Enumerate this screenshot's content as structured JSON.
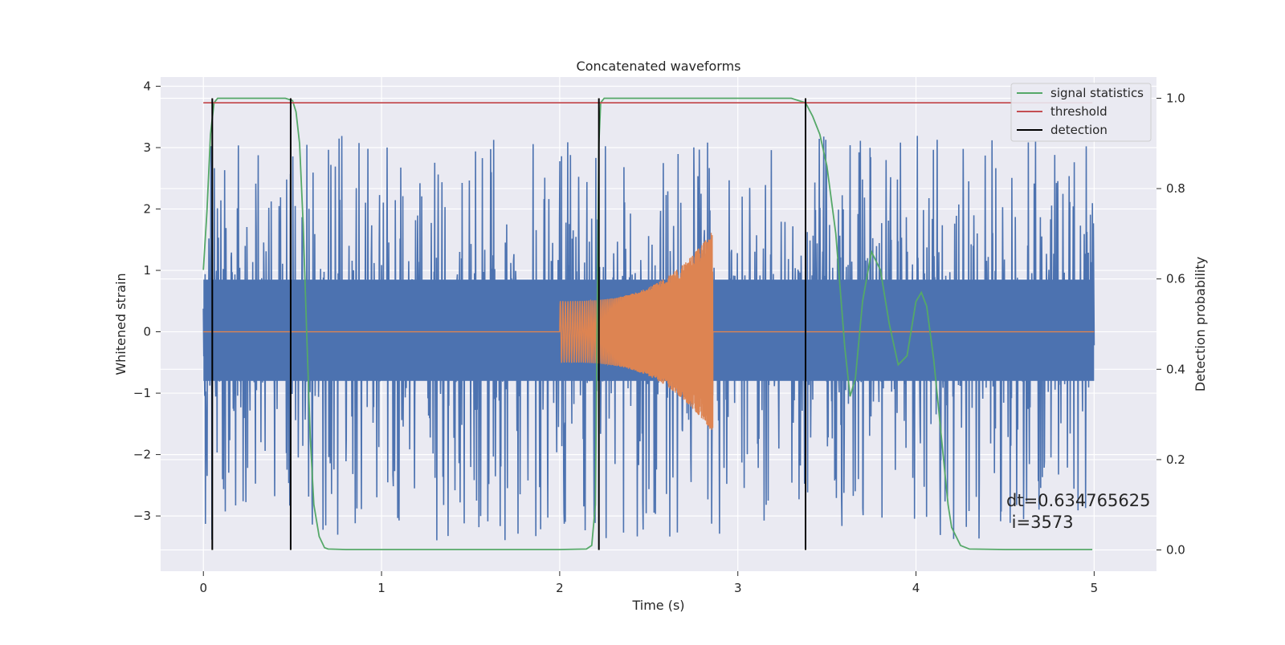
{
  "chart_data": {
    "type": "line",
    "title": "Concatenated waveforms",
    "xlabel": "Time (s)",
    "ylabel_left": "Whitened strain",
    "ylabel_right": "Detection probability",
    "xlim": [
      -0.24,
      5.35
    ],
    "ylim_left": [
      -3.9,
      4.15
    ],
    "ylim_right": [
      -0.047,
      1.047
    ],
    "x_ticks": [
      0,
      1,
      2,
      3,
      4,
      5
    ],
    "x_tick_labels": [
      "0",
      "1",
      "2",
      "3",
      "4",
      "5"
    ],
    "y_left_ticks": [
      -3,
      -2,
      -1,
      0,
      1,
      2,
      3,
      4
    ],
    "y_left_tick_labels": [
      "−3",
      "−2",
      "−1",
      "0",
      "1",
      "2",
      "3",
      "4"
    ],
    "y_right_ticks": [
      0.0,
      0.2,
      0.4,
      0.6,
      0.8,
      1.0
    ],
    "y_right_tick_labels": [
      "0.0",
      "0.2",
      "0.4",
      "0.6",
      "0.8",
      "1.0"
    ],
    "grid": true,
    "legend_position": "top-right",
    "legend": [
      {
        "label": "signal statistics",
        "color": "#55a868"
      },
      {
        "label": "threshold",
        "color": "#c44e52"
      },
      {
        "label": "detection",
        "color": "#000000"
      }
    ],
    "series": [
      {
        "name": "signal statistics",
        "axis": "right",
        "color": "#55a868",
        "x": [
          0.0,
          0.02,
          0.04,
          0.06,
          0.08,
          0.1,
          0.15,
          0.2,
          0.3,
          0.4,
          0.46,
          0.5,
          0.52,
          0.54,
          0.56,
          0.58,
          0.6,
          0.62,
          0.65,
          0.68,
          0.7,
          0.8,
          1.0,
          1.5,
          2.0,
          2.15,
          2.18,
          2.2,
          2.21,
          2.22,
          2.23,
          2.25,
          2.3,
          2.5,
          3.0,
          3.3,
          3.38,
          3.42,
          3.46,
          3.5,
          3.55,
          3.58,
          3.6,
          3.63,
          3.66,
          3.7,
          3.75,
          3.8,
          3.85,
          3.9,
          3.95,
          4.0,
          4.03,
          4.06,
          4.1,
          4.13,
          4.16,
          4.18,
          4.2,
          4.25,
          4.3,
          4.5,
          4.7,
          4.99
        ],
        "values": [
          0.62,
          0.75,
          0.92,
          0.99,
          1.0,
          1.0,
          1.0,
          1.0,
          1.0,
          1.0,
          1.0,
          0.995,
          0.97,
          0.9,
          0.72,
          0.48,
          0.25,
          0.1,
          0.03,
          0.005,
          0.002,
          0.001,
          0.001,
          0.001,
          0.001,
          0.002,
          0.01,
          0.1,
          0.5,
          0.9,
          0.99,
          1.0,
          1.0,
          1.0,
          1.0,
          1.0,
          0.99,
          0.96,
          0.92,
          0.85,
          0.7,
          0.55,
          0.45,
          0.34,
          0.38,
          0.55,
          0.66,
          0.62,
          0.5,
          0.41,
          0.43,
          0.55,
          0.57,
          0.54,
          0.42,
          0.3,
          0.18,
          0.1,
          0.05,
          0.01,
          0.002,
          0.001,
          0.001,
          0.001
        ]
      },
      {
        "name": "threshold",
        "axis": "right",
        "color": "#c44e52",
        "x": [
          0.0,
          4.99
        ],
        "values": [
          0.99,
          0.99
        ]
      }
    ],
    "detections": [
      0.05,
      0.49,
      2.22,
      3.38
    ],
    "detection_color": "#000000",
    "noise": {
      "color": "#4c72b0",
      "x_range": [
        0.0,
        5.0
      ],
      "amplitude_range": [
        -3.6,
        3.8
      ],
      "dense_band": [
        -0.8,
        0.85
      ]
    },
    "injected_signal": {
      "color": "#dd8452",
      "x_start": 2.0,
      "x_end": 2.86,
      "envelope_start": 0.5,
      "envelope_peak": 1.65
    },
    "annotation": {
      "line1": "dt=0.634765625",
      "line2": " i=3573"
    }
  }
}
